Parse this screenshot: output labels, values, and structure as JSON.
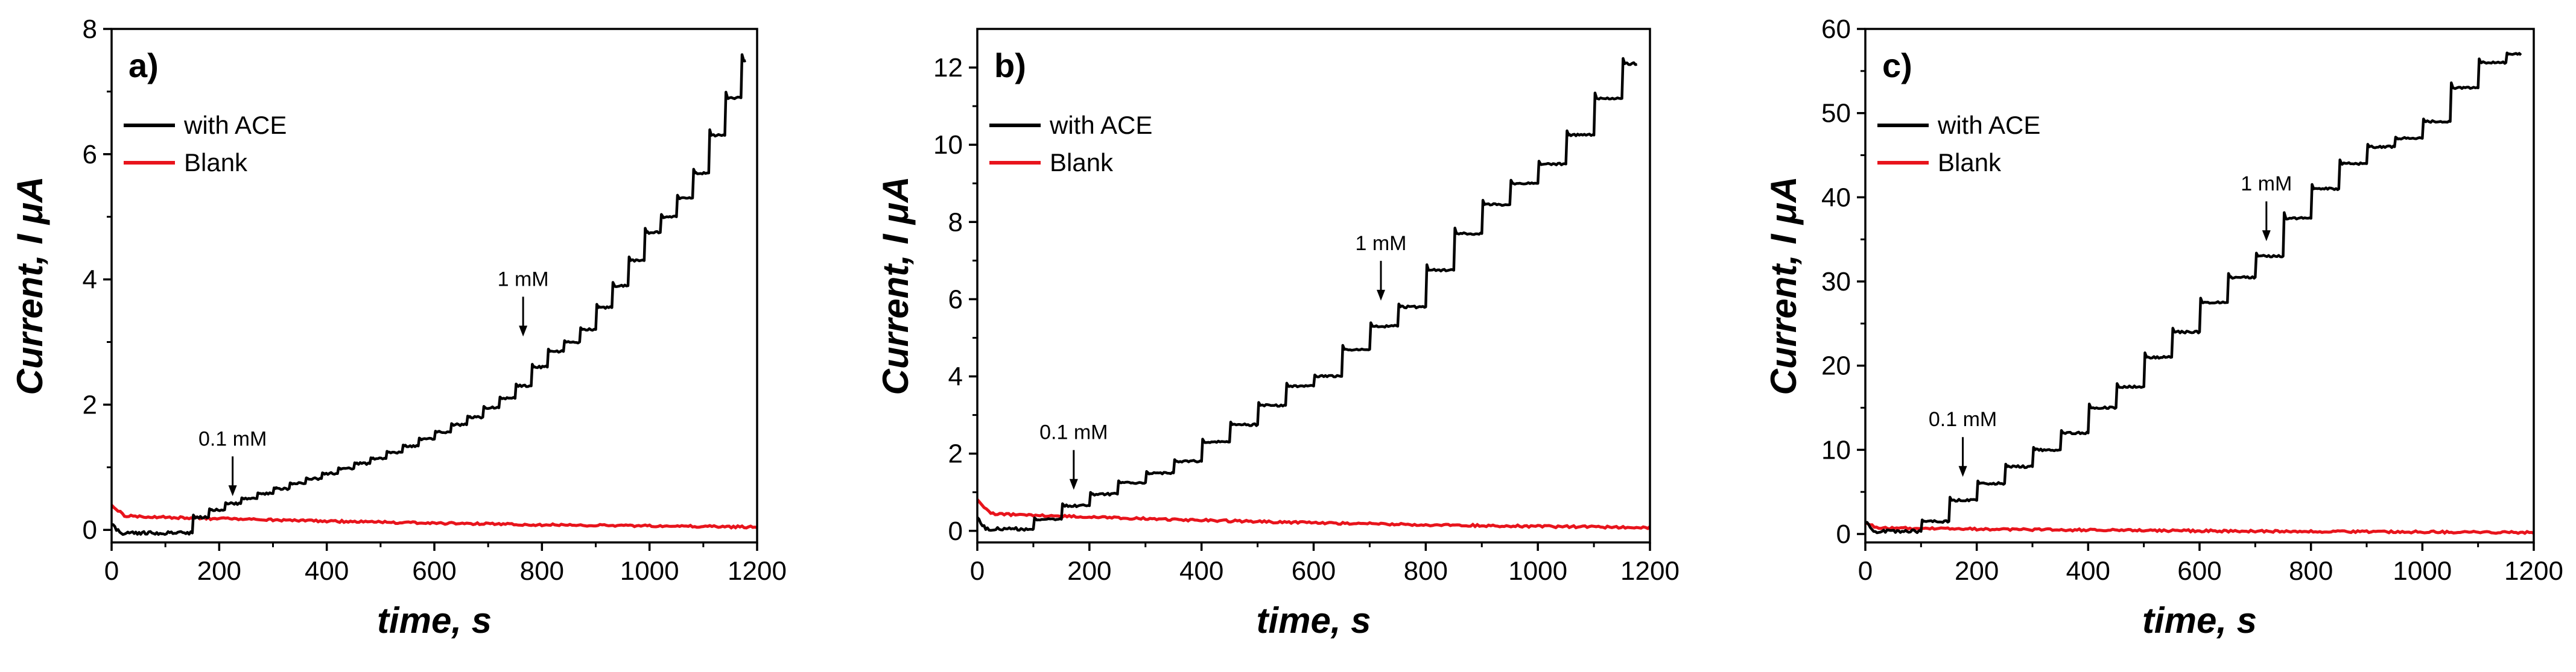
{
  "chart_data": [
    {
      "type": "line",
      "panel_label": "a)",
      "xlabel": "time, s",
      "ylabel": "Current, I μA",
      "xlim": [
        0,
        1200
      ],
      "ylim": [
        -0.2,
        8
      ],
      "xticks": [
        0,
        200,
        400,
        600,
        800,
        1000,
        1200
      ],
      "yticks": [
        0,
        2,
        4,
        6,
        8
      ],
      "legend": [
        "with ACE",
        "Blank"
      ],
      "series": [
        {
          "name": "with ACE",
          "color": "#000000",
          "step_times": [
            150,
            180,
            210,
            240,
            270,
            300,
            330,
            360,
            390,
            420,
            450,
            480,
            510,
            540,
            570,
            600,
            630,
            660,
            690,
            720,
            750,
            780,
            810,
            840,
            870,
            900,
            930,
            960,
            990,
            1020,
            1050,
            1080,
            1110,
            1140,
            1170
          ],
          "step_values": [
            0.2,
            0.32,
            0.42,
            0.5,
            0.58,
            0.66,
            0.74,
            0.82,
            0.9,
            0.98,
            1.06,
            1.14,
            1.24,
            1.34,
            1.45,
            1.56,
            1.68,
            1.8,
            1.95,
            2.1,
            2.3,
            2.6,
            2.85,
            3.0,
            3.2,
            3.55,
            3.9,
            4.3,
            4.75,
            5.0,
            5.3,
            5.7,
            6.3,
            6.9,
            7.5
          ],
          "pre_start_value": -0.05
        },
        {
          "name": "Blank",
          "color": "#e8141c",
          "start": 0.25,
          "end": -0.02
        }
      ],
      "annotations": [
        {
          "text": "0.1 mM",
          "x": 225,
          "y": 0.5
        },
        {
          "text": "1 mM",
          "x": 765,
          "y": 3.05
        }
      ]
    },
    {
      "type": "line",
      "panel_label": "b)",
      "xlabel": "time, s",
      "ylabel": "Current, I μA",
      "xlim": [
        0,
        1200
      ],
      "ylim": [
        -0.3,
        13
      ],
      "xticks": [
        0,
        200,
        400,
        600,
        800,
        1000,
        1200
      ],
      "yticks": [
        0,
        2,
        4,
        6,
        8,
        10,
        12
      ],
      "legend": [
        "with ACE",
        "Blank"
      ],
      "series": [
        {
          "name": "with ACE",
          "color": "#000000",
          "step_times": [
            100,
            150,
            200,
            250,
            300,
            350,
            400,
            450,
            500,
            550,
            600,
            650,
            700,
            750,
            800,
            850,
            900,
            950,
            1000,
            1050,
            1100,
            1150
          ],
          "step_values": [
            0.3,
            0.65,
            0.95,
            1.25,
            1.5,
            1.8,
            2.3,
            2.75,
            3.25,
            3.75,
            4.0,
            4.7,
            5.3,
            5.8,
            6.75,
            7.7,
            8.45,
            9.0,
            9.5,
            10.25,
            11.2,
            12.1
          ],
          "pre_start_value": 0.05
        },
        {
          "name": "Blank",
          "color": "#e8141c",
          "start": 0.5,
          "end": -0.05
        }
      ],
      "annotations": [
        {
          "text": "0.1 mM",
          "x": 172,
          "y": 1.0
        },
        {
          "text": "1 mM",
          "x": 720,
          "y": 5.9
        }
      ]
    },
    {
      "type": "line",
      "panel_label": "c)",
      "xlabel": "time, s",
      "ylabel": "Current, I μA",
      "xlim": [
        0,
        1200
      ],
      "ylim": [
        -1,
        60
      ],
      "xticks": [
        0,
        200,
        400,
        600,
        800,
        1000,
        1200
      ],
      "yticks": [
        0,
        10,
        20,
        30,
        40,
        50,
        60
      ],
      "legend": [
        "with ACE",
        "Blank"
      ],
      "series": [
        {
          "name": "with ACE",
          "color": "#000000",
          "step_times": [
            100,
            150,
            200,
            250,
            300,
            350,
            400,
            450,
            500,
            550,
            600,
            650,
            700,
            750,
            800,
            850,
            900,
            950,
            1000,
            1050,
            1100,
            1150
          ],
          "step_values": [
            1.5,
            4.0,
            6.0,
            8.0,
            10.0,
            12.0,
            15.0,
            17.5,
            21.0,
            24.0,
            27.5,
            30.5,
            33.0,
            37.5,
            41.0,
            44.0,
            46.0,
            47.0,
            49.0,
            53.0,
            56.0,
            57.0
          ],
          "pre_start_value": 0.3
        },
        {
          "name": "Blank",
          "color": "#e8141c",
          "start": 0.8,
          "end": 0.0
        }
      ],
      "annotations": [
        {
          "text": "0.1 mM",
          "x": 175,
          "y": 6.5
        },
        {
          "text": "1 mM",
          "x": 720,
          "y": 34.5
        }
      ]
    }
  ]
}
